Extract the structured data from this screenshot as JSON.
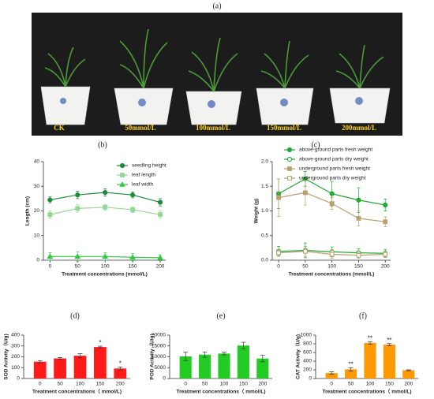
{
  "photo": {
    "label": "(a)",
    "labels": [
      "CK",
      "50mmol/L",
      "100mmol/L",
      "150mmol/L",
      "200mmol/L"
    ]
  },
  "chart_data": [
    {
      "type": "line",
      "label": "(b)",
      "xlabel": "Treatment concentrations (mmol/L)",
      "ylabel": "Length (cm)",
      "x": [
        0,
        50,
        100,
        150,
        200
      ],
      "xlim": [
        -12,
        210
      ],
      "xticks": [
        0,
        50,
        100,
        150,
        200
      ],
      "ylim": [
        0,
        40
      ],
      "yticks": [
        0,
        10,
        20,
        30,
        40
      ],
      "legend": "upper right",
      "series": [
        {
          "name": "seedling height",
          "color": "#1e8b3a",
          "marker": "circle",
          "filled": true,
          "values": [
            24.5,
            26.5,
            27.5,
            26.5,
            23.5
          ],
          "errors": [
            1.2,
            1.5,
            1.5,
            1.2,
            1.5
          ]
        },
        {
          "name": "leaf length",
          "color": "#92d892",
          "marker": "square",
          "filled": true,
          "values": [
            18.5,
            21,
            21.5,
            20.5,
            18.5
          ],
          "errors": [
            1.5,
            1.5,
            1.2,
            1.2,
            1.5
          ]
        },
        {
          "name": "leaf width",
          "color": "#2ecc40",
          "marker": "triangle",
          "filled": true,
          "values": [
            1.5,
            1.5,
            1.5,
            1.2,
            1
          ],
          "errors": [
            1.5,
            2,
            1.5,
            1.5,
            1.2
          ]
        }
      ]
    },
    {
      "type": "line",
      "label": "(c)",
      "xlabel": "Treatment concentrations (mmol/L)",
      "ylabel": "Weight (g)",
      "x": [
        0,
        50,
        100,
        150,
        200
      ],
      "xlim": [
        -12,
        210
      ],
      "xticks": [
        0,
        50,
        100,
        150,
        200
      ],
      "ylim": [
        0,
        2
      ],
      "yticks": [
        {
          "value": 0,
          "label": "0.0"
        },
        0.5,
        {
          "value": 1,
          "label": "1.0"
        },
        1.5,
        {
          "value": 2,
          "label": "2.0"
        }
      ],
      "legend": "upper right",
      "series": [
        {
          "name": "above-ground parts fresh weight",
          "color": "#22aa33",
          "marker": "circle",
          "filled": true,
          "values": [
            1.35,
            1.65,
            1.35,
            1.22,
            1.12
          ],
          "errors": [
            0.3,
            0.15,
            0.25,
            0.25,
            0.12
          ]
        },
        {
          "name": "above-ground parts dry weight",
          "color": "#22aa33",
          "marker": "circle",
          "filled": false,
          "values": [
            0.18,
            0.2,
            0.17,
            0.15,
            0.14
          ],
          "errors": [
            0.1,
            0.15,
            0.1,
            0.08,
            0.08
          ]
        },
        {
          "name": "underground parts fresh weight",
          "color": "#b8a070",
          "marker": "square",
          "filled": true,
          "values": [
            1.27,
            1.37,
            1.15,
            0.85,
            0.78
          ],
          "errors": [
            0.38,
            0.25,
            0.12,
            0.15,
            0.1
          ]
        },
        {
          "name": "underground parts dry weight",
          "color": "#b8a070",
          "marker": "square",
          "filled": false,
          "values": [
            0.15,
            0.18,
            0.12,
            0.1,
            0.12
          ],
          "errors": [
            0.05,
            0.1,
            0.08,
            0.06,
            0.05
          ]
        }
      ]
    },
    {
      "type": "bar",
      "label": "(d)",
      "xlabel": "Treatment concentrations（ mmol/L)",
      "ylabel": "SOD Activity（U/g)",
      "categories": [
        "0",
        "50",
        "100",
        "150",
        "200"
      ],
      "color": "#ff1a1a",
      "values": [
        155,
        185,
        210,
        290,
        92
      ],
      "errors": [
        10,
        8,
        20,
        8,
        15
      ],
      "annotations": [
        null,
        null,
        null,
        "*",
        "*"
      ],
      "ylim": [
        0,
        400
      ],
      "yticks": [
        0,
        100,
        200,
        300,
        400
      ]
    },
    {
      "type": "bar",
      "label": "(e)",
      "xlabel": "Treatment concentrations（ mmol/L)",
      "ylabel": "POD Activity（U/g)",
      "categories": [
        "0",
        "50",
        "100",
        "150",
        "200"
      ],
      "color": "#22cc22",
      "values": [
        10200,
        11000,
        11500,
        15200,
        9200
      ],
      "errors": [
        2000,
        1200,
        600,
        1500,
        1500
      ],
      "ylim": [
        0,
        20000
      ],
      "yticks": [
        0,
        5000,
        10000,
        15000,
        20000
      ]
    },
    {
      "type": "bar",
      "label": "(f)",
      "xlabel": "Treatment concentrations（ mmol/L)",
      "ylabel": "CAT Activity（U/g)",
      "categories": [
        "0",
        "50",
        "100",
        "150",
        "200"
      ],
      "color": "#ff9900",
      "values": [
        125,
        210,
        820,
        780,
        190
      ],
      "errors": [
        30,
        40,
        30,
        25,
        10
      ],
      "annotations": [
        null,
        "**",
        "**",
        "**",
        null
      ],
      "ylim": [
        0,
        1000
      ],
      "yticks": [
        0,
        200,
        400,
        600,
        800,
        1000
      ]
    }
  ]
}
